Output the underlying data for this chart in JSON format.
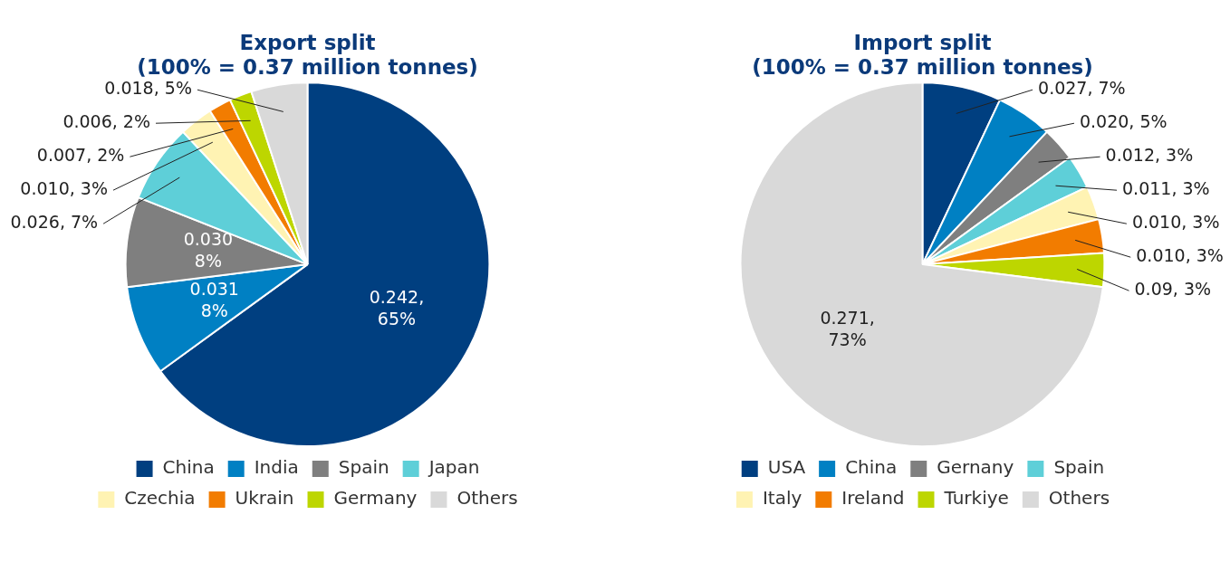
{
  "chart_data": [
    {
      "type": "pie",
      "title": "Export split\n(100% = 0.37 million tonnes)",
      "legend": "bottom",
      "categories": [
        "China",
        "India",
        "Spain",
        "Japan",
        "Czechia",
        "Ukrain",
        "Germany",
        "Others"
      ],
      "values": [
        65,
        8,
        8,
        7,
        3,
        2,
        2,
        5
      ],
      "colors": [
        "#003f80",
        "#0080c3",
        "#7f7f7f",
        "#5ecfd8",
        "#fff3b3",
        "#f27c00",
        "#bdd600",
        "#d9d9d9"
      ],
      "value_labels": [
        "0.242,\n65%",
        "0.031\n8%",
        "0.030\n8%",
        "0.026, 7%",
        "0.010, 3%",
        "0.007, 2%",
        "0.006, 2%",
        "0.018, 5%"
      ]
    },
    {
      "type": "pie",
      "title": "Import split\n(100% = 0.37 million tonnes)",
      "legend": "bottom",
      "categories": [
        "USA",
        "China",
        "Gernany",
        "Spain",
        "Italy",
        "Ireland",
        "Turkiye",
        "Others"
      ],
      "values": [
        7,
        5,
        3,
        3,
        3,
        3,
        3,
        73
      ],
      "colors": [
        "#003f80",
        "#0080c3",
        "#7f7f7f",
        "#5ecfd8",
        "#fff3b3",
        "#f27c00",
        "#bdd600",
        "#d9d9d9"
      ],
      "value_labels": [
        "0.027, 7%",
        "0.020, 5%",
        "0.012, 3%",
        "0.011, 3%",
        "0.010, 3%",
        "0.010, 3%",
        "0.09, 3%",
        "0.271,\n73%"
      ]
    }
  ]
}
